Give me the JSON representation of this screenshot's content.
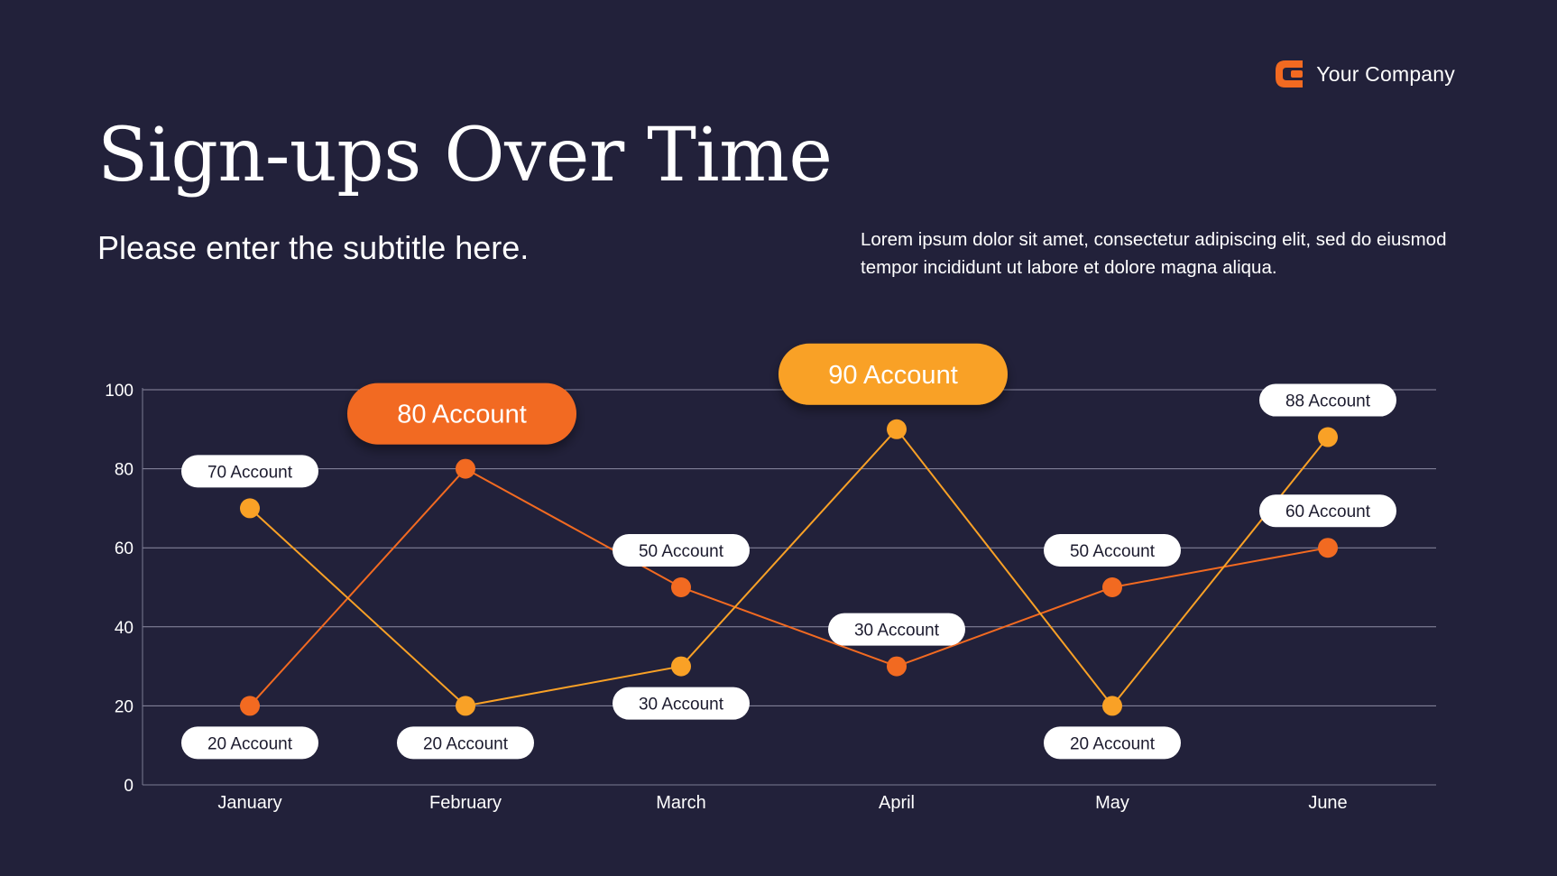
{
  "brand": {
    "name": "Your Company",
    "logo_icon": "company-logo-icon",
    "accent": "#f26a21"
  },
  "header": {
    "title": "Sign-ups Over Time",
    "subtitle": "Please enter the subtitle here.",
    "description": "Lorem ipsum dolor sit amet, consectetur adipiscing elit, sed do eiusmod tempor incididunt ut labore et dolore magna aliqua."
  },
  "chart_data": {
    "type": "line",
    "categories": [
      "January",
      "February",
      "March",
      "April",
      "May",
      "June"
    ],
    "ylim": [
      0,
      100
    ],
    "yticks": [
      0,
      20,
      40,
      60,
      80,
      100
    ],
    "grid": true,
    "unit_suffix": " Account",
    "series": [
      {
        "color": "#f26a21",
        "values": [
          20,
          80,
          50,
          30,
          50,
          60
        ],
        "label_pos": [
          "below",
          "above",
          "above",
          "above",
          "above",
          "above"
        ],
        "highlight_index": 1
      },
      {
        "color": "#f9a126",
        "values": [
          70,
          20,
          30,
          90,
          20,
          88
        ],
        "label_pos": [
          "above",
          "below",
          "below",
          "above",
          "below",
          "above"
        ],
        "highlight_index": 3
      }
    ]
  }
}
